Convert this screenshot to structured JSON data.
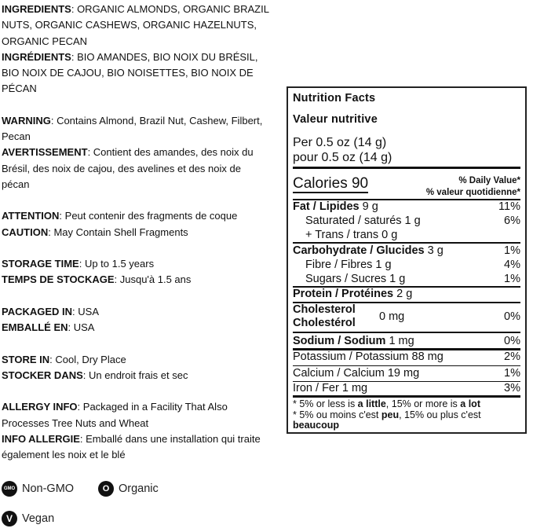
{
  "left_text": [
    {
      "b": "INGREDIENTS",
      "t": ": ORGANIC ALMONDS, ORGANIC BRAZIL"
    },
    {
      "b": "",
      "t": "NUTS, ORGANIC CASHEWS, ORGANIC HAZELNUTS,"
    },
    {
      "b": "",
      "t": "ORGANIC PECAN"
    },
    {
      "b": "INGRÉDIENTS",
      "t": ": BIO AMANDES, BIO NOIX DU BRÉSIL,"
    },
    {
      "b": "",
      "t": "BIO NOIX DE CAJOU, BIO NOISETTES, BIO NOIX DE"
    },
    {
      "b": "",
      "t": "PÉCAN"
    },
    {
      "b": "",
      "t": ""
    },
    {
      "b": "WARNING",
      "t": ": Contains Almond, Brazil Nut, Cashew, Filbert,"
    },
    {
      "b": "",
      "t": "Pecan"
    },
    {
      "b": "AVERTISSEMENT",
      "t": ": Contient des amandes, des noix du"
    },
    {
      "b": "",
      "t": "Brésil, des noix de cajou, des avelines et des noix de"
    },
    {
      "b": "",
      "t": "pécan"
    },
    {
      "b": "",
      "t": ""
    },
    {
      "b": "ATTENTION",
      "t": ": Peut contenir des fragments de coque"
    },
    {
      "b": "CAUTION",
      "t": ": May Contain Shell Fragments"
    },
    {
      "b": "",
      "t": ""
    },
    {
      "b": "STORAGE TIME",
      "t": ": Up to 1.5 years"
    },
    {
      "b": "TEMPS DE STOCKAGE",
      "t": ": Jusqu'à 1.5 ans"
    },
    {
      "b": "",
      "t": ""
    },
    {
      "b": "PACKAGED IN",
      "t": ": USA"
    },
    {
      "b": "EMBALLÉ EN",
      "t": ": USA"
    },
    {
      "b": "",
      "t": ""
    },
    {
      "b": "STORE IN",
      "t": ": Cool, Dry Place"
    },
    {
      "b": "STOCKER DANS",
      "t": ": Un endroit frais et sec"
    },
    {
      "b": "",
      "t": ""
    },
    {
      "b": "ALLERGY INFO",
      "t": ": Packaged in a Facility That Also"
    },
    {
      "b": "",
      "t": "Processes Tree Nuts and Wheat"
    },
    {
      "b": "INFO ALLERGIE",
      "t": ": Emballé dans une installation qui traite"
    },
    {
      "b": "",
      "t": "également les noix et le blé"
    }
  ],
  "badges": [
    {
      "icon": "non-gmo-icon",
      "glyph": "GMO",
      "label": "Non-GMO"
    },
    {
      "icon": "organic-icon",
      "glyph": "O",
      "label": "Organic"
    },
    {
      "icon": "vegan-icon",
      "glyph": "V",
      "label": "Vegan"
    }
  ],
  "nutrition": {
    "title_en": "Nutrition Facts",
    "title_fr": "Valeur nutritive",
    "serving_en": "Per 0.5 oz (14 g)",
    "serving_fr": "pour 0.5 oz (14 g)",
    "calories_label": "Calories 90",
    "dv_en": "% Daily Value*",
    "dv_fr": "% valeur quotidienne*",
    "fat": {
      "label": "Fat / Lipides",
      "amt": " 9 g",
      "dv": "11%"
    },
    "sat": {
      "label": "Saturated / saturés 1 g",
      "dv": "6%"
    },
    "trans": {
      "label": "+ Trans / trans 0 g"
    },
    "carb": {
      "label": "Carbohydrate / Glucides",
      "amt": " 3 g",
      "dv": "1%"
    },
    "fibre": {
      "label": "Fibre / Fibres 1 g",
      "dv": "4%"
    },
    "sugars": {
      "label": "Sugars / Sucres 1 g",
      "dv": "1%"
    },
    "protein": {
      "label": "Protein / Protéines",
      "amt": " 2 g"
    },
    "chol": {
      "label1": "Cholesterol",
      "label2": "Cholestérol",
      "amt": "0 mg",
      "dv": "0%"
    },
    "sodium": {
      "label": "Sodium / Sodium",
      "amt": " 1 mg",
      "dv": "0%"
    },
    "potassium": {
      "label": "Potassium / Potassium 88 mg",
      "dv": "2%"
    },
    "calcium": {
      "label": "Calcium / Calcium 19 mg",
      "dv": "1%"
    },
    "iron": {
      "label": "Iron / Fer 1 mg",
      "dv": "3%"
    },
    "foot1_a": "* 5% or less is ",
    "foot1_b": "a little",
    "foot1_c": ", 15% or more is ",
    "foot1_d": "a lot",
    "foot2_a": "* 5% ou moins c'est ",
    "foot2_b": "peu",
    "foot2_c": ", 15% ou plus c'est",
    "foot3": "beaucoup"
  }
}
